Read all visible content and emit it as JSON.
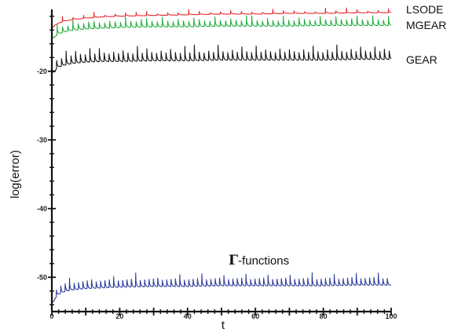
{
  "chart_data": {
    "type": "line",
    "xlabel": "t",
    "ylabel": "log(error)",
    "xlim": [
      0,
      100
    ],
    "ylim": [
      -55,
      -11
    ],
    "x_ticks": [
      0,
      20,
      40,
      60,
      80,
      100
    ],
    "y_ticks": [
      -20,
      -30,
      -40,
      -50
    ],
    "x_tick_labels": [
      "0",
      "20",
      "40",
      "60",
      "80",
      "100"
    ],
    "y_tick_labels": [
      "-20",
      "-30",
      "-40",
      "-50"
    ],
    "grid": false,
    "series": [
      {
        "name": "LSODE",
        "color": "#e8262b",
        "x": [
          0,
          1,
          2,
          4,
          6,
          8,
          10,
          15,
          20,
          30,
          40,
          50,
          60,
          70,
          80,
          90,
          100
        ],
        "values": [
          -13.8,
          -13.2,
          -12.9,
          -12.6,
          -12.4,
          -12.3,
          -12.2,
          -12.0,
          -11.9,
          -11.8,
          -11.7,
          -11.6,
          -11.6,
          -11.5,
          -11.5,
          -11.4,
          -11.4
        ]
      },
      {
        "name": "MGEAR",
        "color": "#1fae3c",
        "x": [
          0,
          1,
          2,
          4,
          6,
          8,
          10,
          15,
          20,
          30,
          40,
          50,
          60,
          70,
          80,
          90,
          100
        ],
        "values": [
          -15.2,
          -14.6,
          -14.2,
          -13.9,
          -13.7,
          -13.6,
          -13.5,
          -13.4,
          -13.3,
          -13.2,
          -13.2,
          -13.1,
          -13.1,
          -13.1,
          -13.0,
          -13.0,
          -13.0
        ]
      },
      {
        "name": "GEAR",
        "color": "#111111",
        "x": [
          0,
          1,
          2,
          4,
          6,
          8,
          10,
          15,
          20,
          30,
          40,
          50,
          60,
          70,
          80,
          90,
          100
        ],
        "values": [
          -20.2,
          -19.4,
          -18.9,
          -18.6,
          -18.4,
          -18.3,
          -18.2,
          -18.1,
          -18.1,
          -18.0,
          -18.0,
          -17.9,
          -17.9,
          -17.9,
          -17.9,
          -17.8,
          -17.8
        ]
      },
      {
        "name": "Γ-functions",
        "color": "#2b3b9a",
        "x": [
          0,
          1,
          2,
          4,
          6,
          8,
          10,
          15,
          20,
          30,
          40,
          50,
          60,
          70,
          80,
          90,
          100
        ],
        "values": [
          -53.8,
          -52.6,
          -52.0,
          -51.6,
          -51.4,
          -51.3,
          -51.2,
          -51.1,
          -51.0,
          -50.9,
          -50.9,
          -50.8,
          -50.8,
          -50.8,
          -50.8,
          -50.7,
          -50.7
        ]
      }
    ],
    "labels": {
      "LSODE": "LSODE",
      "MGEAR": "MGEAR",
      "GEAR": "GEAR",
      "gamma": "-functions",
      "gamma_symbol": "Γ"
    }
  }
}
